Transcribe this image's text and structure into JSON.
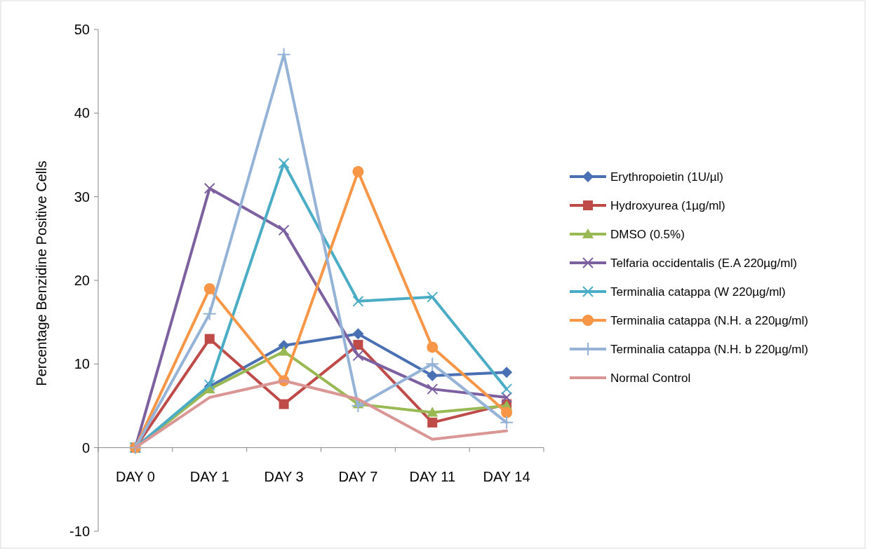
{
  "chart_data": {
    "type": "line",
    "ylabel": "Percentage Benzidine Positive Cells",
    "categories": [
      "DAY 0",
      "DAY 1",
      "DAY 3",
      "DAY 7",
      "DAY 11",
      "DAY 14"
    ],
    "ylim": [
      -10,
      50
    ],
    "yticks": [
      -10,
      0,
      10,
      20,
      30,
      40,
      50
    ],
    "grid": false,
    "legend": "right",
    "series": [
      {
        "name": "Erythropoietin (1U/µl)",
        "color": "#4a70b4",
        "marker": "diamond",
        "values": [
          0,
          7.3,
          12.2,
          13.6,
          8.6,
          9
        ]
      },
      {
        "name": "Hydroxyurea (1µg/ml)",
        "color": "#be4b48",
        "marker": "square",
        "values": [
          0,
          13,
          5.2,
          12.3,
          3,
          5.2
        ]
      },
      {
        "name": "DMSO (0.5%)",
        "color": "#98b954",
        "marker": "triangle",
        "values": [
          0,
          7,
          11.5,
          5.2,
          4.2,
          5
        ]
      },
      {
        "name": "Telfaria occidentalis (E.A 220µg/ml)",
        "color": "#7d60a0",
        "marker": "cross",
        "values": [
          0,
          31,
          26,
          11,
          7,
          6
        ]
      },
      {
        "name": "Terminalia catappa (W 220µg/ml)",
        "color": "#4bacc6",
        "marker": "cross",
        "values": [
          0,
          7.5,
          34,
          17.5,
          18,
          7
        ]
      },
      {
        "name": "Terminalia catappa (N.H. a 220µg/ml)",
        "color": "#f79646",
        "marker": "circle",
        "values": [
          0,
          19,
          8,
          33,
          12,
          4.2
        ]
      },
      {
        "name": "Terminalia catappa (N.H. b 220µg/ml)",
        "color": "#95b3d7",
        "marker": "plus",
        "values": [
          0,
          16,
          47,
          5,
          10,
          3
        ]
      },
      {
        "name": "Normal Control",
        "color": "#d99694",
        "marker": "none",
        "values": [
          0,
          6,
          8,
          5.8,
          1,
          2
        ]
      }
    ]
  }
}
